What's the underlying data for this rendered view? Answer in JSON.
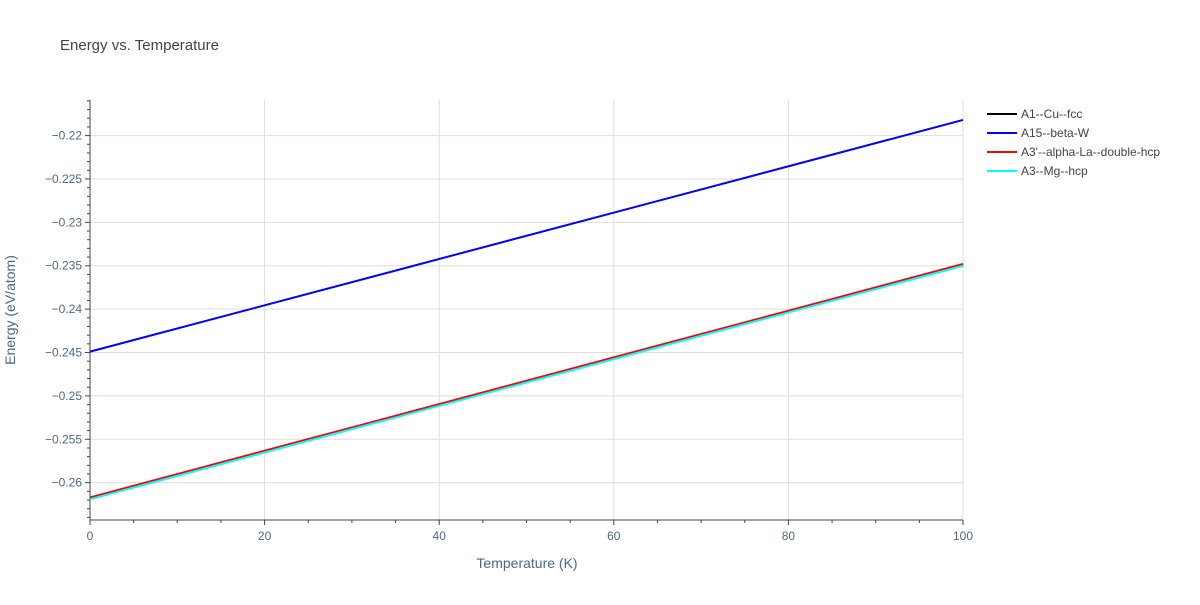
{
  "chart_data": {
    "type": "line",
    "title": "Energy vs. Temperature",
    "xlabel": "Temperature (K)",
    "ylabel": "Energy (eV/atom)",
    "xlim": [
      0,
      100
    ],
    "ylim": [
      -0.2643,
      -0.2159
    ],
    "x_ticks": [
      0,
      20,
      40,
      60,
      80,
      100
    ],
    "x_tick_labels": [
      "0",
      "20",
      "40",
      "60",
      "80",
      "100"
    ],
    "y_ticks": [
      -0.22,
      -0.225,
      -0.23,
      -0.235,
      -0.24,
      -0.245,
      -0.25,
      -0.255,
      -0.26
    ],
    "y_tick_labels": [
      "−0.22",
      "−0.225",
      "−0.23",
      "−0.235",
      "−0.24",
      "−0.245",
      "−0.25",
      "−0.255",
      "−0.26"
    ],
    "grid": true,
    "legend_position": "top-right",
    "series": [
      {
        "name": "A1--Cu--fcc",
        "color": "#000000",
        "x": [
          0,
          100
        ],
        "y": [
          -0.2618,
          -0.2349
        ]
      },
      {
        "name": "A15--beta-W",
        "color": "#0000ff",
        "x": [
          0,
          100
        ],
        "y": [
          -0.2449,
          -0.2182
        ]
      },
      {
        "name": "A3'--alpha-La--double-hcp",
        "color": "#ff0000",
        "x": [
          0,
          100
        ],
        "y": [
          -0.2617,
          -0.2348
        ]
      },
      {
        "name": "A3--Mg--hcp",
        "color": "#00ffff",
        "x": [
          0,
          100
        ],
        "y": [
          -0.2619,
          -0.235
        ]
      }
    ]
  }
}
